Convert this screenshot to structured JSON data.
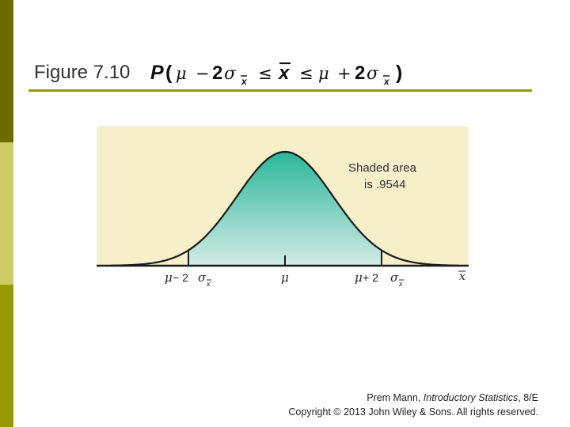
{
  "slide": {
    "title_label": "Figure 7.10",
    "formula": {
      "p": "P",
      "open": "(",
      "mu1": "μ",
      "minus": "−",
      "two1": "2",
      "sigma1": "σ",
      "sub1": "x",
      "le1": "≤",
      "xbar": "x",
      "le2": "≤",
      "mu2": "μ",
      "plus": "+",
      "two2": "2",
      "sigma2": "σ",
      "sub2": "x",
      "close": ")"
    },
    "credit": {
      "line1_pre": "Prem Mann, ",
      "line1_book": "Introductory Statistics",
      "line1_post": ", 8/E",
      "line2": "Copyright © 2013 John Wiley & Sons. All rights reserved."
    }
  },
  "figure": {
    "shaded_label_line1": "Shaded area",
    "shaded_label_line2": "is .9544",
    "tick_left_mu": "μ",
    "tick_left_op": " − 2",
    "tick_left_sigma": "σ",
    "tick_left_sub": "x",
    "tick_center": "μ",
    "tick_right_mu": "μ",
    "tick_right_op": " + 2",
    "tick_right_sigma": "σ",
    "tick_right_sub": "x",
    "axis_var": "x",
    "colors": {
      "panel_bg": "#f7efc9",
      "shade_top": "#2ab79a",
      "shade_bottom": "#d2ebe4",
      "line": "#1a1a1a"
    }
  }
}
